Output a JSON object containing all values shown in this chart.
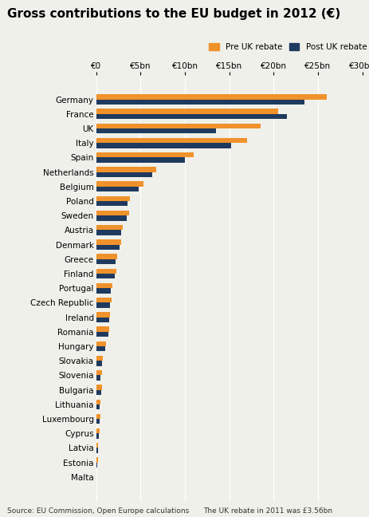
{
  "title": "Gross contributions to the EU budget in 2012 (€)",
  "countries": [
    "Germany",
    "France",
    "UK",
    "Italy",
    "Spain",
    "Netherlands",
    "Belgium",
    "Poland",
    "Sweden",
    "Austria",
    "Denmark",
    "Greece",
    "Finland",
    "Portugal",
    "Czech Republic",
    "Ireland",
    "Romania",
    "Hungary",
    "Slovakia",
    "Slovenia",
    "Bulgaria",
    "Lithuania",
    "Luxembourg",
    "Cyprus",
    "Latvia",
    "Estonia",
    "Malta"
  ],
  "pre_uk_rebate": [
    26.0,
    20.5,
    18.5,
    17.0,
    11.0,
    6.8,
    5.3,
    3.8,
    3.7,
    3.0,
    2.8,
    2.4,
    2.3,
    1.8,
    1.7,
    1.6,
    1.5,
    1.1,
    0.75,
    0.65,
    0.65,
    0.48,
    0.48,
    0.38,
    0.23,
    0.2,
    0.07
  ],
  "post_uk_rebate": [
    23.5,
    21.5,
    13.5,
    15.2,
    10.0,
    6.3,
    4.8,
    3.5,
    3.4,
    2.8,
    2.6,
    2.2,
    2.1,
    1.65,
    1.55,
    1.45,
    1.35,
    1.0,
    0.68,
    0.48,
    0.55,
    0.4,
    0.4,
    0.3,
    0.18,
    0.16,
    0.05
  ],
  "color_pre": "#f0922b",
  "color_post": "#1f3a5f",
  "xlabel_ticks": [
    0,
    5,
    10,
    15,
    20,
    25,
    30
  ],
  "xlabel_labels": [
    "€0",
    "€5bn",
    "€10bn",
    "€15bn",
    "€20bn",
    "€25bn",
    "€30bn"
  ],
  "source_text": "Source: EU Commission, Open Europe calculations",
  "rebate_note": "The UK rebate in 2011 was £3.56bn",
  "legend_pre": "Pre UK rebate",
  "legend_post": "Post UK rebate",
  "bg_color": "#f0f0eb",
  "bar_height": 0.35,
  "title_fontsize": 11,
  "axis_fontsize": 7.5,
  "label_fontsize": 7.5,
  "source_fontsize": 6.5
}
